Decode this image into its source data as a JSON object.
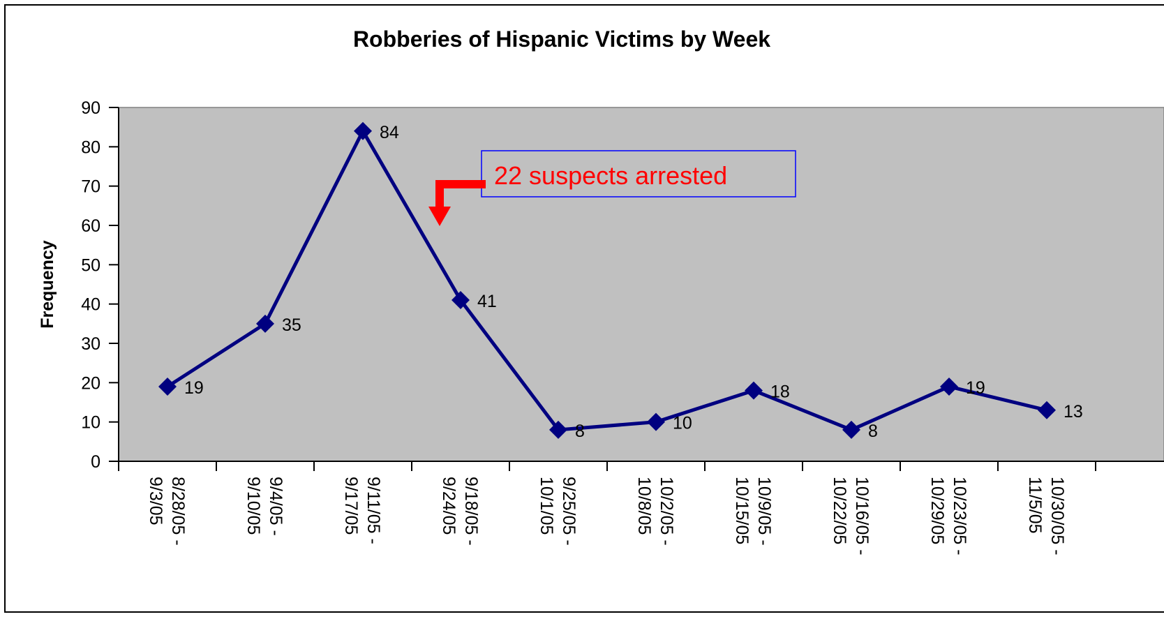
{
  "chart_data": {
    "type": "line",
    "title": "Robberies of Hispanic Victims by Week",
    "ylabel": "Frequency",
    "xlabel": "",
    "ylim": [
      0,
      90
    ],
    "yticks": [
      0,
      10,
      20,
      30,
      40,
      50,
      60,
      70,
      80,
      90
    ],
    "categories": [
      [
        "8/28/05 -",
        "9/3/05"
      ],
      [
        "9/4/05 -",
        "9/10/05"
      ],
      [
        "9/11/05 -",
        "9/17/05"
      ],
      [
        "9/18/05 -",
        "9/24/05"
      ],
      [
        "9/25/05 -",
        "10/1/05"
      ],
      [
        "10/2/05 -",
        "10/8/05"
      ],
      [
        "10/9/05 -",
        "10/15/05"
      ],
      [
        "10/16/05 -",
        "10/22/05"
      ],
      [
        "10/23/05 -",
        "10/29/05"
      ],
      [
        "10/30/05 -",
        "11/5/05"
      ]
    ],
    "series": [
      {
        "values": [
          19,
          35,
          84,
          41,
          8,
          10,
          18,
          8,
          19,
          13
        ]
      }
    ],
    "data_labels": true,
    "grid": false,
    "plot_background": "#c0c0c0",
    "line_color": "#000080",
    "annotation": {
      "text": "22 suspects arrested",
      "text_color": "#ff0000",
      "box_border": "#0000ff",
      "arrow_color": "#ff0000"
    }
  }
}
